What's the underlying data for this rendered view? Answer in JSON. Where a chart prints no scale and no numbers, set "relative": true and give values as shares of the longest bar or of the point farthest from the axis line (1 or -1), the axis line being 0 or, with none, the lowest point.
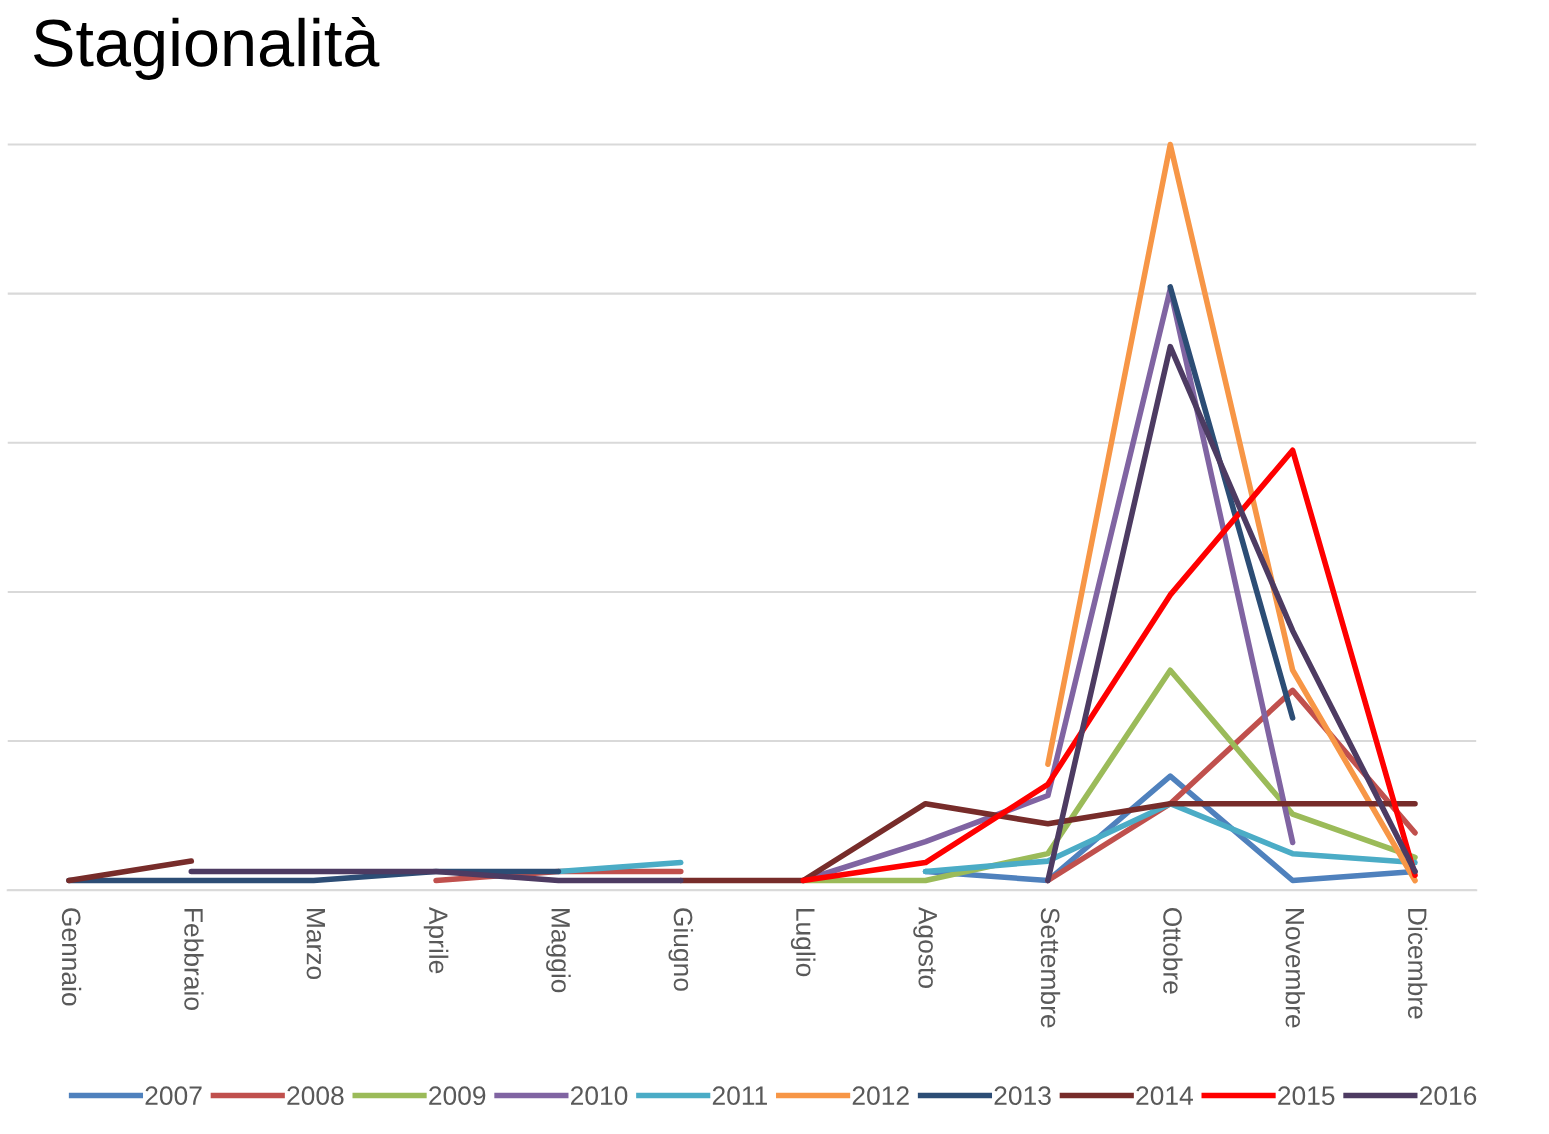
{
  "chart_data": {
    "type": "line",
    "title": "Stagionalità",
    "relative": true,
    "grid": "y",
    "legend": "bottom",
    "tick_labels": "x",
    "line_style": "solid",
    "marker": "none",
    "categories": [
      "Gennaio",
      "Febbraio",
      "Marzo",
      "Aprile",
      "Maggio",
      "Giugno",
      "Luglio",
      "Agosto",
      "Settembre",
      "Ottobre",
      "Novembre",
      "Dicembre"
    ],
    "series": [
      {
        "name": "2007",
        "color": "#4f81bd",
        "values": [
          null,
          null,
          null,
          null,
          null,
          null,
          null,
          0.025,
          0.013,
          0.153,
          0.013,
          0.025
        ]
      },
      {
        "name": "2008",
        "color": "#c0504d",
        "values": [
          null,
          null,
          null,
          0.013,
          0.025,
          0.025,
          null,
          null,
          0.013,
          0.116,
          0.268,
          0.077
        ]
      },
      {
        "name": "2009",
        "color": "#9bbb59",
        "values": [
          null,
          null,
          null,
          null,
          null,
          null,
          0.013,
          0.013,
          0.049,
          0.295,
          0.102,
          0.044
        ]
      },
      {
        "name": "2010",
        "color": "#8064a2",
        "values": [
          null,
          null,
          null,
          null,
          null,
          null,
          0.013,
          0.065,
          0.127,
          0.806,
          0.064,
          null
        ]
      },
      {
        "name": "2011",
        "color": "#4bacc6",
        "values": [
          null,
          null,
          null,
          null,
          0.025,
          0.037,
          null,
          0.025,
          0.039,
          0.116,
          0.049,
          0.037
        ]
      },
      {
        "name": "2012",
        "color": "#f79646",
        "values": [
          null,
          null,
          null,
          null,
          null,
          null,
          null,
          null,
          0.169,
          1,
          0.295,
          0.013
        ]
      },
      {
        "name": "2013",
        "color": "#2c4d75",
        "values": [
          0.013,
          0.013,
          0.013,
          0.025,
          0.025,
          null,
          null,
          null,
          null,
          0.809,
          0.231,
          null
        ]
      },
      {
        "name": "2014",
        "color": "#772c2a",
        "values": [
          0.013,
          0.039,
          null,
          null,
          null,
          0.013,
          0.013,
          0.116,
          0.089,
          0.116,
          0.116,
          0.116
        ]
      },
      {
        "name": "2015",
        "color": "#ff0000",
        "values": [
          null,
          null,
          null,
          null,
          null,
          null,
          0.013,
          0.037,
          0.142,
          0.396,
          0.59,
          0.02
        ]
      },
      {
        "name": "2016",
        "color": "#4d3b62",
        "values": [
          null,
          0.025,
          0.025,
          0.025,
          0.013,
          0.013,
          null,
          null,
          0.013,
          0.729,
          0.348,
          0.025
        ]
      }
    ]
  }
}
